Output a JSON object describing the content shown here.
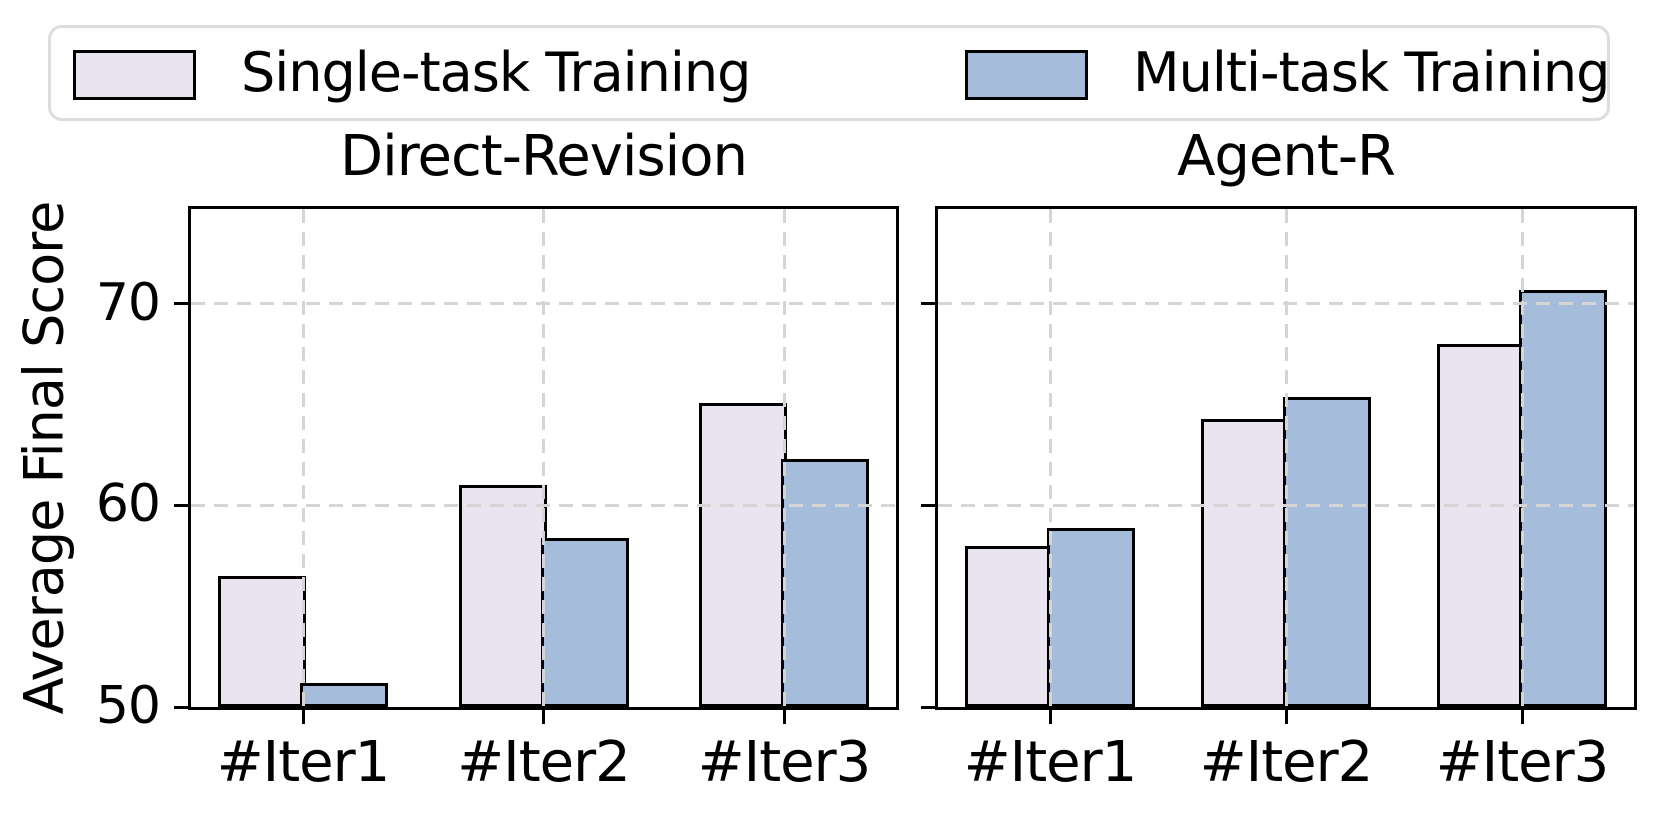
{
  "figure": {
    "ylabel": "Average Final Score",
    "legend": {
      "items": [
        {
          "label": "Single-task Training",
          "color": "#eae4f1"
        },
        {
          "label": "Multi-task Training",
          "color": "#a5bdda"
        }
      ]
    }
  },
  "chart_data": [
    {
      "type": "bar",
      "title": "Direct-Revision",
      "categories": [
        "#Iter1",
        "#Iter2",
        "#Iter3"
      ],
      "series": [
        {
          "name": "Single-task Training",
          "values": [
            56.5,
            61.0,
            65.1
          ]
        },
        {
          "name": "Multi-task Training",
          "values": [
            51.2,
            58.4,
            62.3
          ]
        }
      ],
      "ylabel": "Average Final Score",
      "ylim": [
        50,
        75
      ],
      "yticks": [
        50,
        60,
        70
      ],
      "grid": "dashed, light gray, drawn above bars",
      "legend_position": "top, outside, horizontal"
    },
    {
      "type": "bar",
      "title": "Agent-R",
      "categories": [
        "#Iter1",
        "#Iter2",
        "#Iter3"
      ],
      "series": [
        {
          "name": "Single-task Training",
          "values": [
            58.0,
            64.3,
            68.0
          ]
        },
        {
          "name": "Multi-task Training",
          "values": [
            58.9,
            65.4,
            70.7
          ]
        }
      ],
      "ylabel": "Average Final Score",
      "ylim": [
        50,
        75
      ],
      "yticks": [
        50,
        60,
        70
      ],
      "grid": "dashed, light gray, drawn above bars",
      "legend_position": "top, outside, horizontal"
    }
  ],
  "style": {
    "single_task_fill": "#eae4f1",
    "multi_task_fill": "#a5bdda",
    "bar_edge": "#000000",
    "grid_color": "#d5d5d5",
    "legend_border": "#dcdcdc",
    "text_color": "#000000"
  }
}
